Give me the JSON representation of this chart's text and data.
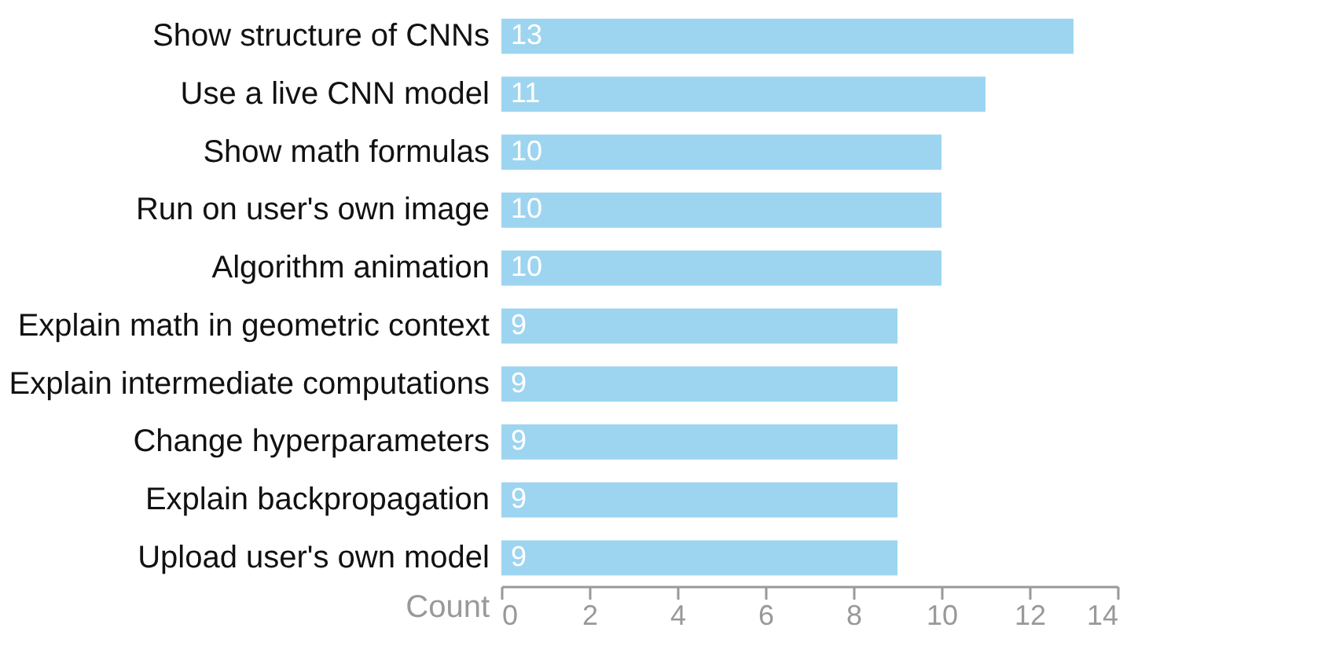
{
  "chart_data": {
    "type": "bar",
    "orientation": "horizontal",
    "xlabel": "Count",
    "categories": [
      "Show structure of CNNs",
      "Use a live CNN model",
      "Show math formulas",
      "Run on user's own image",
      "Algorithm animation",
      "Explain math in geometric context",
      "Explain intermediate computations",
      "Change hyperparameters",
      "Explain backpropagation",
      "Upload user's own model"
    ],
    "values": [
      13,
      11,
      10,
      10,
      10,
      9,
      9,
      9,
      9,
      9
    ],
    "color": "#9dd5f0",
    "data_labels": true,
    "grid": false,
    "xlim": [
      0,
      14
    ],
    "xticks": [
      0,
      2,
      4,
      6,
      8,
      10,
      12,
      14
    ]
  }
}
